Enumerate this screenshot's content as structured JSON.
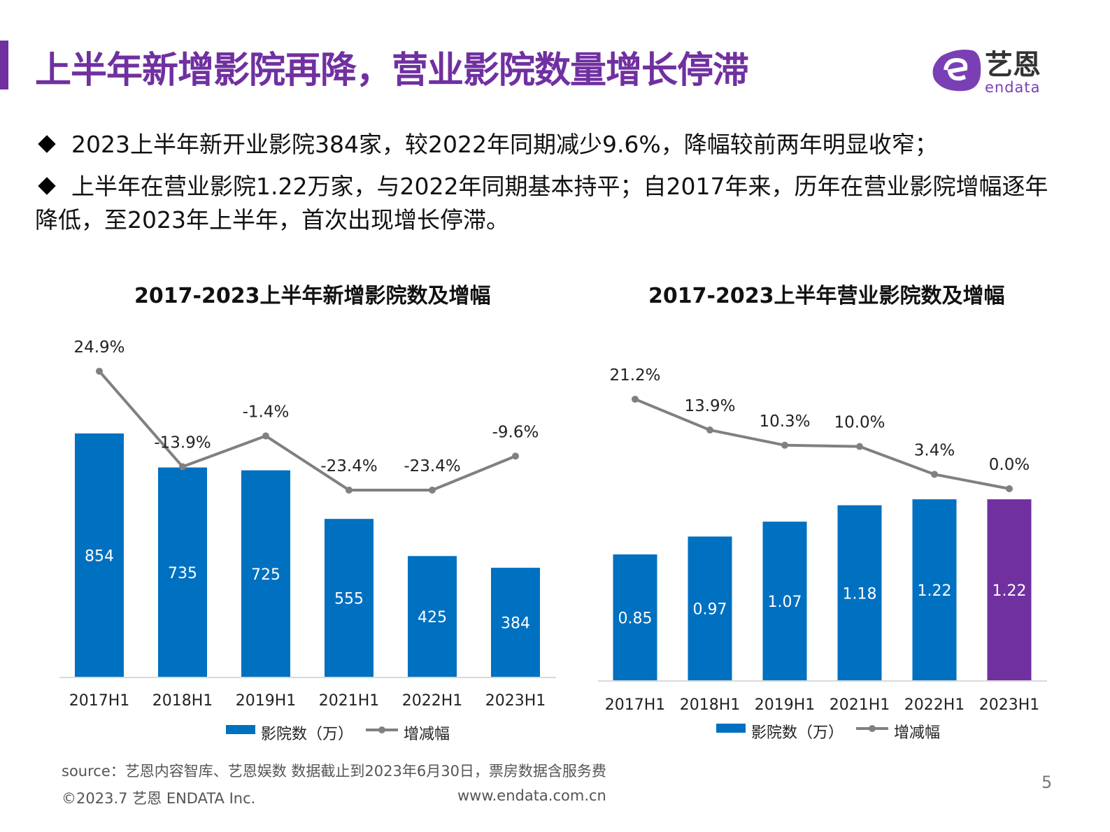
{
  "header": {
    "title": "上半年新增影院再降，营业影院数量增长停滞",
    "logo_text": "艺恩",
    "logo_sub": "endata"
  },
  "bullets": [
    "2023上半年新开业影院384家，较2022年同期减少9.6%，降幅较前两年明显收窄；",
    "上半年在营业影院1.22万家，与2022年同期基本持平；自2017年来，历年在营业影院增幅逐年降低，至2023年上半年，首次出现增长停滞。"
  ],
  "colors": {
    "bar": "#0070C0",
    "highlight": "#7030A0",
    "line": "#808080",
    "title": "#7030A0"
  },
  "chart_data": [
    {
      "type": "bar+line",
      "title": "2017-2023上半年新增影院数及增幅",
      "categories": [
        "2017H1",
        "2018H1",
        "2019H1",
        "2021H1",
        "2022H1",
        "2023H1"
      ],
      "series": [
        {
          "name": "影院数（万）",
          "type": "bar",
          "values": [
            854,
            735,
            725,
            555,
            425,
            384
          ],
          "labels": [
            "854",
            "735",
            "725",
            "555",
            "425",
            "384"
          ]
        },
        {
          "name": "增减幅",
          "type": "line",
          "values": [
            24.9,
            -13.9,
            -1.4,
            -23.4,
            -23.4,
            -9.6
          ],
          "labels": [
            "24.9%",
            "-13.9%",
            "-1.4%",
            "-23.4%",
            "-23.4%",
            "-9.6%"
          ]
        }
      ],
      "legend": "bottom",
      "grid": false
    },
    {
      "type": "bar+line",
      "title": "2017-2023上半年营业影院数及增幅",
      "categories": [
        "2017H1",
        "2018H1",
        "2019H1",
        "2021H1",
        "2022H1",
        "2023H1"
      ],
      "series": [
        {
          "name": "影院数（万）",
          "type": "bar",
          "values": [
            0.85,
            0.97,
            1.07,
            1.18,
            1.22,
            1.22
          ],
          "labels": [
            "0.85",
            "0.97",
            "1.07",
            "1.18",
            "1.22",
            "1.22"
          ]
        },
        {
          "name": "增减幅",
          "type": "line",
          "values": [
            21.2,
            13.9,
            10.3,
            10.0,
            3.4,
            0.0
          ],
          "labels": [
            "21.2%",
            "13.9%",
            "10.3%",
            "10.0%",
            "3.4%",
            "0.0%"
          ]
        }
      ],
      "legend": "bottom",
      "grid": false,
      "highlight_last_bar": true
    }
  ],
  "footer": {
    "source": "source：艺恩内容智库、艺恩娱数      数据截止到2023年6月30日，票房数据含服务费",
    "copyright": "©2023.7 艺恩 ENDATA Inc.",
    "website": "www.endata.com.cn",
    "page_number": "5"
  }
}
